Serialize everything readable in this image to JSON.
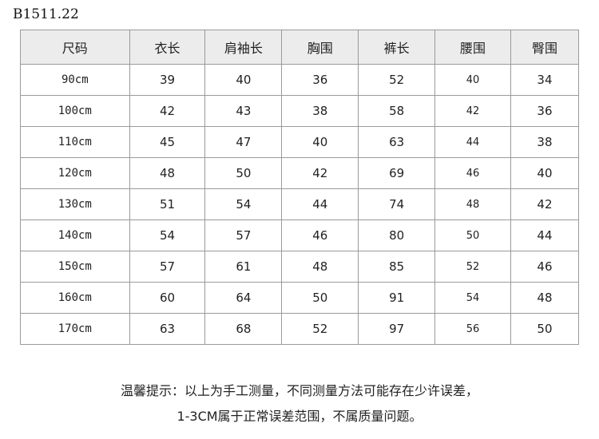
{
  "product_code": "B1511.22",
  "table": {
    "headers": [
      "尺码",
      "衣长",
      "肩袖长",
      "胸围",
      "裤长",
      "腰围",
      "臀围"
    ],
    "rows": [
      [
        "90cm",
        "39",
        "40",
        "36",
        "52",
        "40",
        "34"
      ],
      [
        "100cm",
        "42",
        "43",
        "38",
        "58",
        "42",
        "36"
      ],
      [
        "110cm",
        "45",
        "47",
        "40",
        "63",
        "44",
        "38"
      ],
      [
        "120cm",
        "48",
        "50",
        "42",
        "69",
        "46",
        "40"
      ],
      [
        "130cm",
        "51",
        "54",
        "44",
        "74",
        "48",
        "42"
      ],
      [
        "140cm",
        "54",
        "57",
        "46",
        "80",
        "50",
        "44"
      ],
      [
        "150cm",
        "57",
        "61",
        "48",
        "85",
        "52",
        "46"
      ],
      [
        "160cm",
        "60",
        "64",
        "50",
        "91",
        "54",
        "48"
      ],
      [
        "170cm",
        "63",
        "68",
        "52",
        "97",
        "56",
        "50"
      ]
    ]
  },
  "note": {
    "line1": "温馨提示：以上为手工测量，不同测量方法可能存在少许误差，",
    "line2": "1-3CM属于正常误差范围，不属质量问题。"
  }
}
